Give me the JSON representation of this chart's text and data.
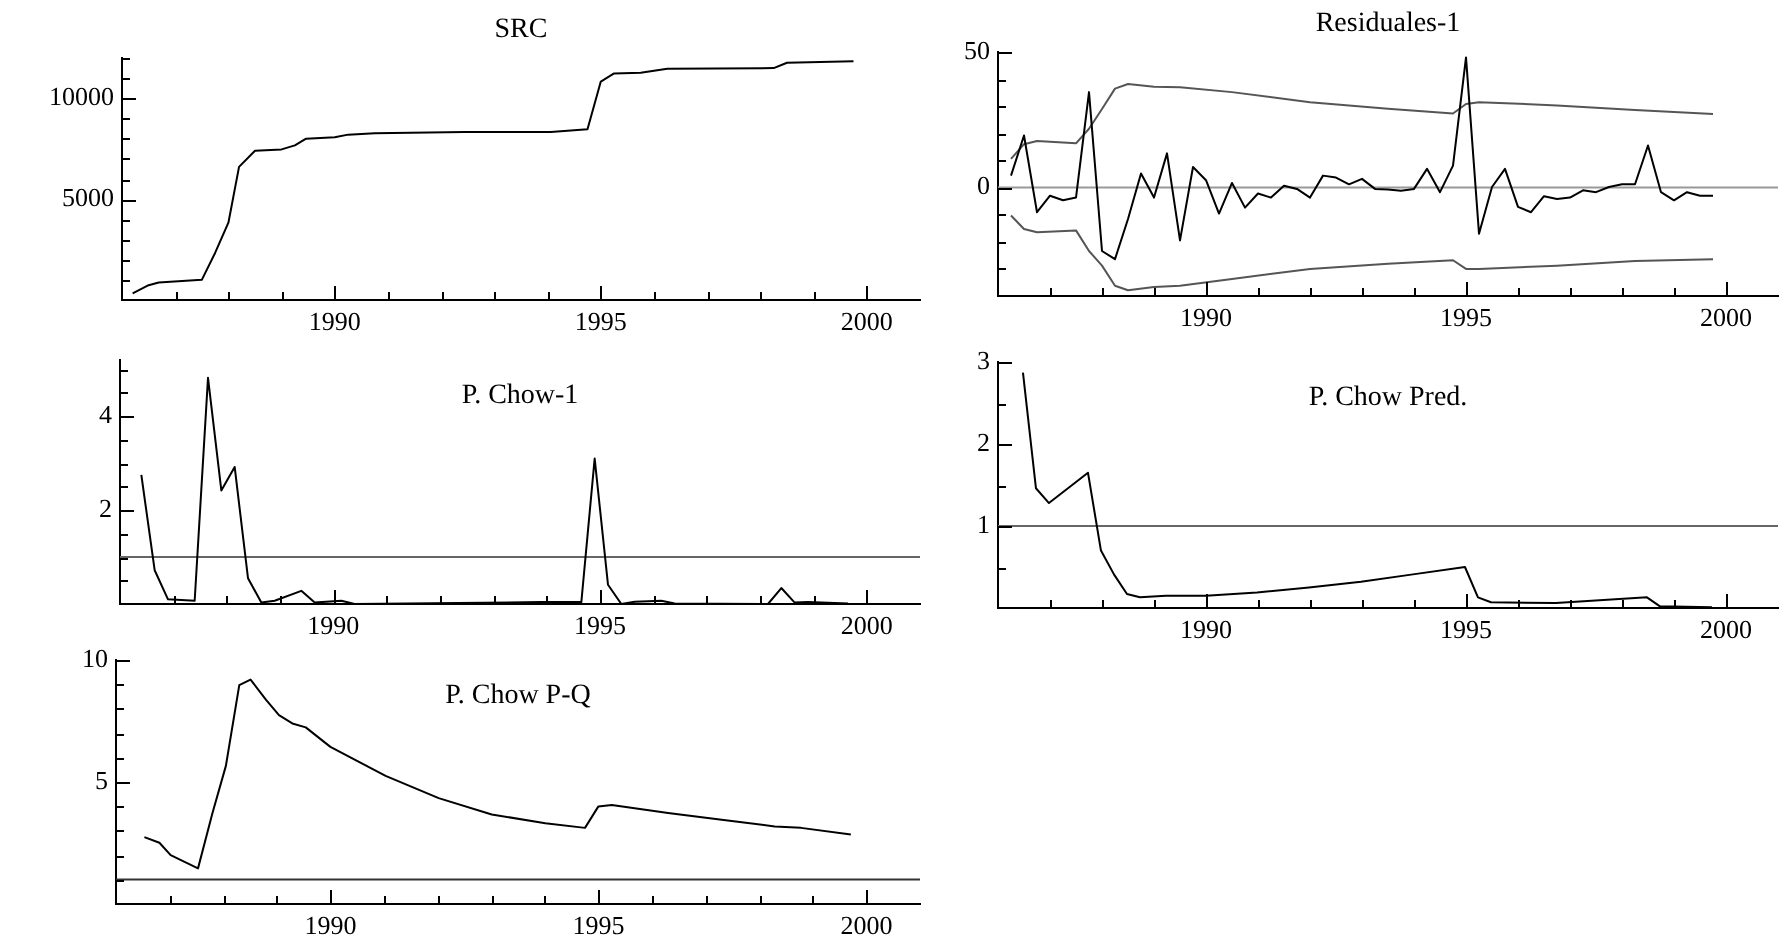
{
  "chart_data": [
    {
      "type": "line",
      "title": "SRC",
      "xlim": [
        1986,
        2001
      ],
      "xticks": [
        {
          "value": 1987,
          "label": null
        },
        {
          "value": 1988,
          "label": null
        },
        {
          "value": 1989,
          "label": null
        },
        1990,
        {
          "value": 1991,
          "label": null
        },
        {
          "value": 1992,
          "label": null
        },
        {
          "value": 1993,
          "label": null
        },
        {
          "value": 1994,
          "label": null
        },
        1995,
        {
          "value": 1996,
          "label": null
        },
        {
          "value": 1997,
          "label": null
        },
        {
          "value": 1998,
          "label": null
        },
        {
          "value": 1999,
          "label": null
        },
        2000
      ],
      "ylim": [
        0,
        12000
      ],
      "yticks": [
        {
          "value": 1000,
          "label": null
        },
        {
          "value": 2000,
          "label": null
        },
        {
          "value": 3000,
          "label": null
        },
        {
          "value": 4000,
          "label": null
        },
        5000,
        {
          "value": 6000,
          "label": null
        },
        {
          "value": 7000,
          "label": null
        },
        {
          "value": 8000,
          "label": null
        },
        {
          "value": 9000,
          "label": null
        },
        10000,
        {
          "value": 11000,
          "label": null
        },
        {
          "value": 12000,
          "label": null
        }
      ],
      "series": [
        {
          "color": "#000000",
          "x": [
            1986.2,
            1986.5,
            1986.69,
            1987.5,
            1987.75,
            1988,
            1988.2,
            1988.5,
            1989,
            1989.25,
            1989.46,
            1990,
            1990.25,
            1990.75,
            1992.44,
            1994.06,
            1994.75,
            1995,
            1995.25,
            1995.75,
            1996.25,
            1998.25,
            1998.5,
            1999.75
          ],
          "values": [
            333,
            733,
            867,
            1000,
            2333,
            3833,
            6600,
            7400,
            7467,
            7667,
            8000,
            8067,
            8200,
            8267,
            8333,
            8333,
            8467,
            10833,
            11233,
            11267,
            11467,
            11500,
            11767,
            11833
          ]
        }
      ]
    },
    {
      "type": "line",
      "title": "Residuales-1",
      "xlim": [
        1986,
        2001
      ],
      "xticks": [
        {
          "value": 1987,
          "label": null
        },
        {
          "value": 1988,
          "label": null
        },
        {
          "value": 1989,
          "label": null
        },
        1990,
        {
          "value": 1991,
          "label": null
        },
        {
          "value": 1992,
          "label": null
        },
        {
          "value": 1993,
          "label": null
        },
        {
          "value": 1994,
          "label": null
        },
        1995,
        {
          "value": 1996,
          "label": null
        },
        {
          "value": 1997,
          "label": null
        },
        {
          "value": 1998,
          "label": null
        },
        {
          "value": 1999,
          "label": null
        },
        2000
      ],
      "ylim": [
        -40,
        50
      ],
      "yticks": [
        {
          "value": -30,
          "label": null
        },
        {
          "value": -20,
          "label": null
        },
        {
          "value": -10,
          "label": null
        },
        0,
        {
          "value": 10,
          "label": null
        },
        {
          "value": 20,
          "label": null
        },
        {
          "value": 30,
          "label": null
        },
        {
          "value": 40,
          "label": null
        },
        50
      ],
      "ref_lines": [
        {
          "axis": "y",
          "value": 0,
          "color": "#999999"
        }
      ],
      "series": [
        {
          "color": "#000000",
          "x": [
            1986.25,
            1986.5,
            1986.75,
            1987,
            1987.25,
            1987.5,
            1987.75,
            1988,
            1988.25,
            1988.5,
            1988.75,
            1989,
            1989.25,
            1989.5,
            1989.75,
            1990,
            1990.25,
            1990.5,
            1990.75,
            1991,
            1991.25,
            1991.5,
            1991.75,
            1992,
            1992.25,
            1992.5,
            1992.75,
            1993,
            1993.25,
            1993.5,
            1993.75,
            1994,
            1994.25,
            1994.5,
            1994.75,
            1995,
            1995.25,
            1995.5,
            1995.75,
            1996,
            1996.25,
            1996.5,
            1996.75,
            1997,
            1997.25,
            1997.5,
            1997.75,
            1998,
            1998.25,
            1998.5,
            1998.75,
            1999,
            1999.25,
            1999.5,
            1999.75
          ],
          "values": [
            4.4,
            19.2,
            -9.1,
            -3,
            -4.7,
            -3.7,
            35.2,
            -23.4,
            -26.4,
            -11.6,
            5.2,
            -3.7,
            12.6,
            -19.5,
            7.6,
            2.7,
            -9.6,
            1.7,
            -7.4,
            -2.2,
            -3.7,
            0.7,
            -0.5,
            -3.7,
            4.4,
            3.7,
            1.2,
            3.2,
            -0.5,
            -0.7,
            -1.2,
            -0.5,
            6.9,
            -1.7,
            8.1,
            48,
            -17,
            0.2,
            6.9,
            -7.1,
            -9.1,
            -3.2,
            -4.2,
            -3.7,
            -1,
            -1.7,
            0.2,
            1.2,
            1.2,
            15.5,
            -1.7,
            -4.7,
            -1.7,
            -3,
            -3
          ]
        },
        {
          "color": "#555555",
          "x": [
            1986.25,
            1986.5,
            1986.75,
            1987.5,
            1987.75,
            1988,
            1988.25,
            1988.5,
            1989,
            1989.5,
            1990.5,
            1992,
            1993.5,
            1994.75,
            1995,
            1995.25,
            1996.75,
            1998.25,
            1999.75
          ],
          "values": [
            10.6,
            16,
            17.2,
            16.3,
            21.7,
            29,
            36.5,
            38.2,
            37.2,
            37,
            35.2,
            31.5,
            29.1,
            27.3,
            30.8,
            31.5,
            30.3,
            28.6,
            27.1
          ]
        },
        {
          "color": "#555555",
          "x": [
            1986.25,
            1986.5,
            1986.75,
            1987.5,
            1987.75,
            1988,
            1988.25,
            1988.5,
            1989,
            1989.5,
            1990.5,
            1992,
            1993.5,
            1994.75,
            1995,
            1995.25,
            1996.75,
            1998.25,
            1999.75
          ],
          "values": [
            -10.3,
            -15.3,
            -16.5,
            -15.8,
            -23.4,
            -28.8,
            -36.2,
            -37.9,
            -36.7,
            -36.2,
            -33.7,
            -30,
            -28.1,
            -26.8,
            -30,
            -30,
            -28.8,
            -27.1,
            -26.4
          ]
        }
      ]
    },
    {
      "type": "line",
      "title": "P. Chow-1",
      "xlim": [
        1986,
        2001
      ],
      "xticks": [
        {
          "value": 1987,
          "label": null
        },
        {
          "value": 1988,
          "label": null
        },
        {
          "value": 1989,
          "label": null
        },
        1990,
        {
          "value": 1991,
          "label": null
        },
        {
          "value": 1992,
          "label": null
        },
        {
          "value": 1993,
          "label": null
        },
        {
          "value": 1994,
          "label": null
        },
        1995,
        {
          "value": 1996,
          "label": null
        },
        {
          "value": 1997,
          "label": null
        },
        {
          "value": 1998,
          "label": null
        },
        {
          "value": 1999,
          "label": null
        },
        2000
      ],
      "ylim": [
        0,
        5.2
      ],
      "yticks": [
        {
          "value": 0.5,
          "label": null
        },
        {
          "value": 1,
          "label": null
        },
        {
          "value": 1.5,
          "label": null
        },
        2,
        {
          "value": 2.5,
          "label": null
        },
        {
          "value": 3,
          "label": null
        },
        {
          "value": 3.5,
          "label": null
        },
        4,
        {
          "value": 4.5,
          "label": null
        },
        {
          "value": 5,
          "label": null
        }
      ],
      "ref_lines": [
        {
          "axis": "y",
          "value": 1,
          "color": "#666666"
        }
      ],
      "series": [
        {
          "color": "#000000",
          "x": [
            1986.4,
            1986.65,
            1986.9,
            1987.4,
            1987.65,
            1987.9,
            1988.15,
            1988.4,
            1988.65,
            1988.9,
            1989.4,
            1989.65,
            1990.15,
            1990.4,
            1993.9,
            1994.65,
            1994.9,
            1995.15,
            1995.4,
            1995.65,
            1996.15,
            1996.4,
            1998.15,
            1998.4,
            1998.65,
            1998.9,
            1999.65
          ],
          "values": [
            2.75,
            0.72,
            0.1,
            0.07,
            4.82,
            2.42,
            2.92,
            0.55,
            0.03,
            0.07,
            0.28,
            0.03,
            0.07,
            0,
            0.04,
            0.04,
            3.1,
            0.41,
            0,
            0.05,
            0.07,
            0.01,
            0,
            0.34,
            0.03,
            0.04,
            0.01
          ]
        }
      ]
    },
    {
      "type": "line",
      "title": "P. Chow Pred.",
      "xlim": [
        1986,
        2001
      ],
      "xticks": [
        {
          "value": 1987,
          "label": null
        },
        {
          "value": 1988,
          "label": null
        },
        {
          "value": 1989,
          "label": null
        },
        1990,
        {
          "value": 1991,
          "label": null
        },
        {
          "value": 1992,
          "label": null
        },
        {
          "value": 1993,
          "label": null
        },
        {
          "value": 1994,
          "label": null
        },
        1995,
        {
          "value": 1996,
          "label": null
        },
        {
          "value": 1997,
          "label": null
        },
        {
          "value": 1998,
          "label": null
        },
        {
          "value": 1999,
          "label": null
        },
        2000
      ],
      "ylim": [
        0,
        3
      ],
      "yticks": [
        {
          "value": 0.5,
          "label": null
        },
        1,
        {
          "value": 1.5,
          "label": null
        },
        2,
        {
          "value": 2.5,
          "label": null
        },
        3
      ],
      "ref_lines": [
        {
          "axis": "y",
          "value": 1,
          "color": "#666666"
        }
      ],
      "series": [
        {
          "color": "#000000",
          "x": [
            1986.48,
            1986.73,
            1986.98,
            1987.73,
            1987.98,
            1988.23,
            1988.48,
            1988.73,
            1989.23,
            1990,
            1990.98,
            1991.98,
            1992.98,
            1993.98,
            1994.98,
            1995.23,
            1995.48,
            1996.73,
            1998.48,
            1998.73,
            1999.73
          ],
          "values": [
            2.87,
            1.46,
            1.28,
            1.65,
            0.7,
            0.41,
            0.17,
            0.13,
            0.15,
            0.15,
            0.19,
            0.25,
            0.32,
            0.41,
            0.5,
            0.13,
            0.07,
            0.06,
            0.13,
            0.02,
            0.01
          ]
        }
      ]
    },
    {
      "type": "line",
      "title": "P. Chow P-Q",
      "xlim": [
        1986,
        2001
      ],
      "xticks": [
        {
          "value": 1987,
          "label": null
        },
        {
          "value": 1988,
          "label": null
        },
        {
          "value": 1989,
          "label": null
        },
        1990,
        {
          "value": 1991,
          "label": null
        },
        {
          "value": 1992,
          "label": null
        },
        {
          "value": 1993,
          "label": null
        },
        {
          "value": 1994,
          "label": null
        },
        1995,
        {
          "value": 1996,
          "label": null
        },
        {
          "value": 1997,
          "label": null
        },
        {
          "value": 1998,
          "label": null
        },
        {
          "value": 1999,
          "label": null
        },
        2000
      ],
      "ylim": [
        0,
        10
      ],
      "yticks": [
        {
          "value": 1,
          "label": null
        },
        {
          "value": 2,
          "label": null
        },
        {
          "value": 3,
          "label": null
        },
        {
          "value": 4,
          "label": null
        },
        5,
        {
          "value": 6,
          "label": null
        },
        {
          "value": 7,
          "label": null
        },
        {
          "value": 8,
          "label": null
        },
        {
          "value": 9,
          "label": null
        },
        10
      ],
      "ref_lines": [
        {
          "axis": "y",
          "value": 1,
          "color": "#333333"
        }
      ],
      "series": [
        {
          "color": "#000000",
          "x": [
            1986.53,
            1986.81,
            1987.02,
            1987.27,
            1987.53,
            1987.8,
            1988.05,
            1988.3,
            1988.51,
            1988.8,
            1989.04,
            1989.29,
            1989.54,
            1990,
            1991.03,
            1992.02,
            1993.01,
            1994.01,
            1994.75,
            1995,
            1995.25,
            1996.3,
            1997.3,
            1998.29,
            1998.78,
            1999.71
          ],
          "values": [
            2.74,
            2.51,
            2,
            1.74,
            1.46,
            3.73,
            5.66,
            8.97,
            9.2,
            8.37,
            7.74,
            7.4,
            7.24,
            6.44,
            5.25,
            4.34,
            3.67,
            3.31,
            3.12,
            4,
            4.06,
            3.73,
            3.45,
            3.18,
            3.12,
            2.85
          ]
        }
      ]
    }
  ]
}
